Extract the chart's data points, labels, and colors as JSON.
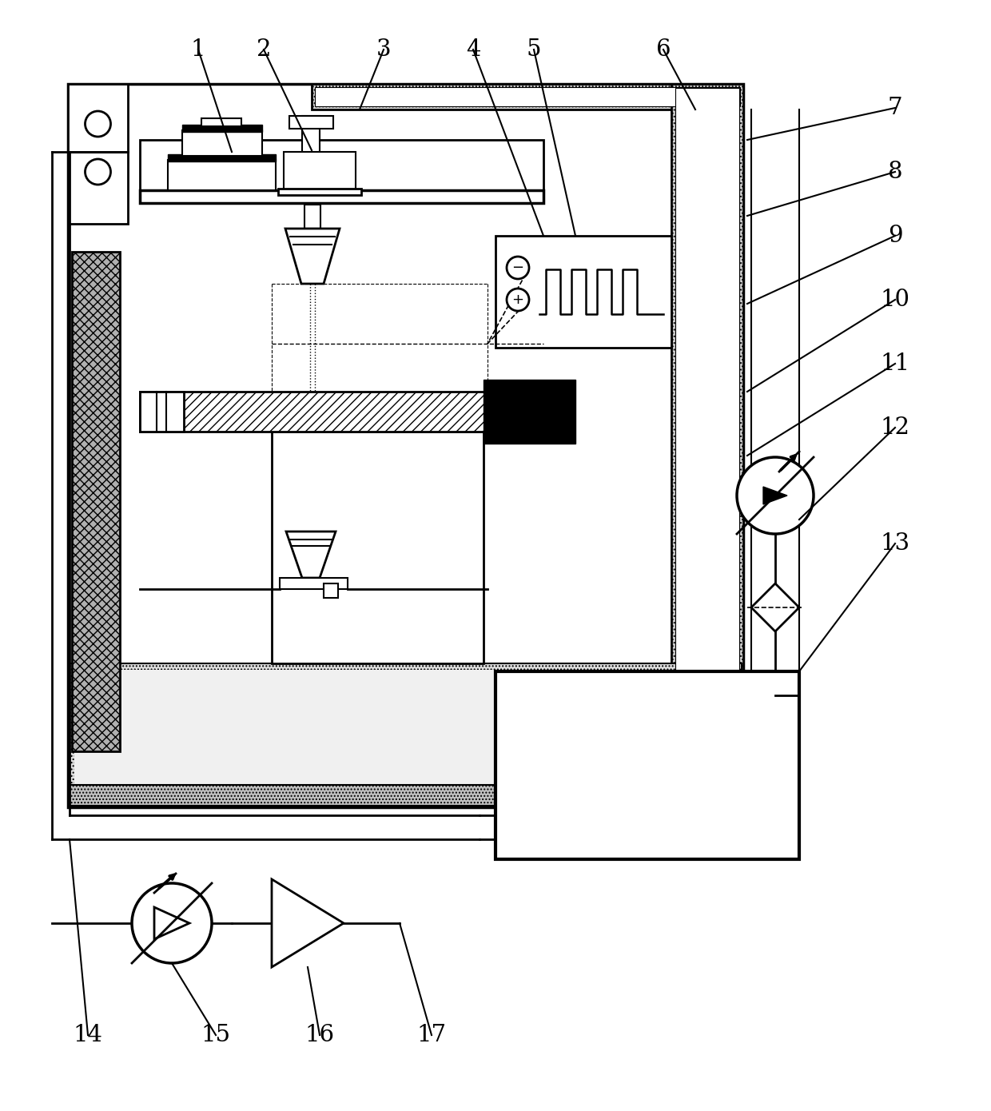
{
  "bg_color": "#ffffff",
  "black": "#000000",
  "gray_light": "#d0d0d0",
  "gray_med": "#a0a0a0",
  "gray_dark": "#808080"
}
